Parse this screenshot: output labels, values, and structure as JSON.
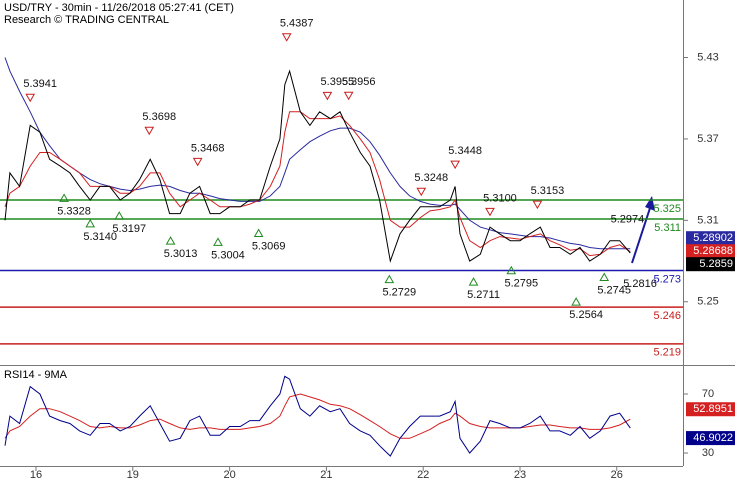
{
  "chart_data": [
    {
      "type": "line",
      "title": "USD/TRY - 30min - 11/26/2018 05:27:41 (CET)",
      "subtitle": "Research © TRADING CENTRAL",
      "x": [
        -0.32,
        -0.27,
        -0.17,
        -0.06,
        0.04,
        0.14,
        0.25,
        0.35,
        0.45,
        0.56,
        0.66,
        0.76,
        0.87,
        0.97,
        1.07,
        1.18,
        1.28,
        1.38,
        1.49,
        1.59,
        1.69,
        1.8,
        1.9,
        2.0,
        2.11,
        2.21,
        2.31,
        2.42,
        2.52,
        2.57,
        2.62,
        2.73,
        2.83,
        2.93,
        3.04,
        3.14,
        3.24,
        3.35,
        3.45,
        3.55,
        3.66,
        3.76,
        3.86,
        3.97,
        4.07,
        4.17,
        4.28,
        4.33,
        4.38,
        4.48,
        4.59,
        4.69,
        4.79,
        4.9,
        5.0,
        5.1,
        5.21,
        5.31,
        5.41,
        5.52,
        5.62,
        5.72,
        5.83,
        5.93,
        6.03,
        6.14
      ],
      "series": [
        {
          "color": "#2a2aa0",
          "values": [
            5.43,
            5.42,
            5.405,
            5.39,
            5.375,
            5.365,
            5.355,
            5.35,
            5.345,
            5.34,
            5.337,
            5.335,
            5.333,
            5.332,
            5.333,
            5.335,
            5.336,
            5.335,
            5.332,
            5.33,
            5.33,
            5.328,
            5.326,
            5.325,
            5.324,
            5.324,
            5.324,
            5.328,
            5.335,
            5.345,
            5.355,
            5.362,
            5.368,
            5.372,
            5.376,
            5.378,
            5.378,
            5.375,
            5.368,
            5.358,
            5.345,
            5.335,
            5.328,
            5.324,
            5.322,
            5.321,
            5.321,
            5.322,
            5.318,
            5.31,
            5.305,
            5.303,
            5.301,
            5.3,
            5.299,
            5.298,
            5.298,
            5.297,
            5.295,
            5.293,
            5.292,
            5.29,
            5.289,
            5.289,
            5.289,
            5.28902
          ]
        },
        {
          "color": "#d42020",
          "values": [
            5.32,
            5.33,
            5.335,
            5.35,
            5.36,
            5.36,
            5.355,
            5.35,
            5.345,
            5.335,
            5.335,
            5.335,
            5.33,
            5.33,
            5.335,
            5.345,
            5.345,
            5.33,
            5.32,
            5.325,
            5.33,
            5.325,
            5.32,
            5.32,
            5.32,
            5.322,
            5.325,
            5.335,
            5.35,
            5.375,
            5.39,
            5.39,
            5.385,
            5.385,
            5.385,
            5.387,
            5.38,
            5.37,
            5.36,
            5.34,
            5.31,
            5.305,
            5.305,
            5.312,
            5.317,
            5.318,
            5.32,
            5.325,
            5.312,
            5.295,
            5.29,
            5.295,
            5.298,
            5.297,
            5.296,
            5.298,
            5.3,
            5.295,
            5.292,
            5.288,
            5.289,
            5.284,
            5.285,
            5.29,
            5.292,
            5.28688
          ]
        },
        {
          "color": "#000000",
          "values": [
            5.31,
            5.345,
            5.335,
            5.38,
            5.375,
            5.355,
            5.35,
            5.345,
            5.335,
            5.325,
            5.335,
            5.335,
            5.325,
            5.33,
            5.34,
            5.355,
            5.34,
            5.315,
            5.315,
            5.33,
            5.335,
            5.315,
            5.315,
            5.32,
            5.32,
            5.325,
            5.325,
            5.35,
            5.37,
            5.41,
            5.42,
            5.39,
            5.38,
            5.39,
            5.385,
            5.39,
            5.375,
            5.36,
            5.35,
            5.325,
            5.28,
            5.3,
            5.31,
            5.32,
            5.32,
            5.32,
            5.325,
            5.335,
            5.3,
            5.28,
            5.285,
            5.305,
            5.3,
            5.295,
            5.295,
            5.3,
            5.305,
            5.29,
            5.29,
            5.285,
            5.29,
            5.28,
            5.285,
            5.295,
            5.295,
            5.2859
          ]
        }
      ],
      "xlim": [
        -0.372,
        6.684
      ],
      "ylim": [
        5.2056,
        5.4724
      ],
      "yticks": [
        5.43,
        5.37,
        5.31,
        5.25
      ],
      "levels": [
        {
          "value": 5.325,
          "color": "#1f8a1f"
        },
        {
          "value": 5.311,
          "color": "#1f8a1f"
        },
        {
          "value": 5.273,
          "color": "#1a1ab0"
        },
        {
          "value": 5.246,
          "color": "#c81e1e"
        },
        {
          "value": 5.219,
          "color": "#c81e1e"
        }
      ],
      "annotations": [
        {
          "x": -0.06,
          "value": 5.3941,
          "kind": "high"
        },
        {
          "x": 1.17,
          "value": 5.3698,
          "kind": "high"
        },
        {
          "x": 1.67,
          "value": 5.3468,
          "kind": "high"
        },
        {
          "x": 2.59,
          "value": 5.4387,
          "kind": "high"
        },
        {
          "x": 3.01,
          "value": 5.3955,
          "kind": "high"
        },
        {
          "x": 3.23,
          "value": 5.3956,
          "kind": "high"
        },
        {
          "x": 3.98,
          "value": 5.3248,
          "kind": "high"
        },
        {
          "x": 4.33,
          "value": 5.3448,
          "kind": "high"
        },
        {
          "x": 4.69,
          "value": 5.31,
          "label": "5.3100",
          "kind": "high"
        },
        {
          "x": 5.18,
          "value": 5.3153,
          "kind": "high"
        },
        {
          "x": 0.29,
          "value": 5.3328,
          "kind": "low"
        },
        {
          "x": 0.56,
          "value": 5.314,
          "label": "5.3140",
          "kind": "low"
        },
        {
          "x": 0.86,
          "value": 5.3197,
          "kind": "low"
        },
        {
          "x": 1.39,
          "value": 5.3013,
          "kind": "low"
        },
        {
          "x": 1.88,
          "value": 5.3004,
          "kind": "low"
        },
        {
          "x": 2.3,
          "value": 5.3069,
          "kind": "low"
        },
        {
          "x": 3.65,
          "value": 5.2729,
          "kind": "low"
        },
        {
          "x": 4.52,
          "value": 5.2711,
          "kind": "low"
        },
        {
          "x": 4.91,
          "value": 5.2795,
          "kind": "low"
        },
        {
          "x": 5.58,
          "value": 5.2564,
          "kind": "low"
        },
        {
          "x": 5.87,
          "value": 5.2745,
          "kind": "low"
        },
        {
          "x": 6.11,
          "value": 5.2974,
          "kind": "label-above"
        },
        {
          "x": 6.24,
          "value": 5.2816,
          "kind": "label-below"
        }
      ]
    },
    {
      "type": "line",
      "title": "RSI14 - 9MA",
      "x": [
        -0.32,
        -0.27,
        -0.17,
        -0.06,
        0.04,
        0.14,
        0.25,
        0.35,
        0.45,
        0.56,
        0.66,
        0.76,
        0.87,
        0.97,
        1.07,
        1.18,
        1.28,
        1.38,
        1.49,
        1.59,
        1.69,
        1.8,
        1.9,
        2.0,
        2.11,
        2.21,
        2.31,
        2.42,
        2.52,
        2.57,
        2.62,
        2.73,
        2.83,
        2.93,
        3.04,
        3.14,
        3.24,
        3.35,
        3.45,
        3.55,
        3.66,
        3.76,
        3.86,
        3.97,
        4.07,
        4.17,
        4.28,
        4.33,
        4.38,
        4.48,
        4.59,
        4.69,
        4.79,
        4.9,
        5.0,
        5.1,
        5.21,
        5.31,
        5.41,
        5.52,
        5.62,
        5.72,
        5.83,
        5.93,
        6.03,
        6.14
      ],
      "series": [
        {
          "color": "#d42020",
          "values": [
            40,
            45,
            48,
            55,
            60,
            60,
            58,
            55,
            52,
            48,
            47,
            48,
            47,
            47,
            49,
            52,
            53,
            50,
            47,
            46,
            47,
            47,
            46,
            46,
            46,
            47,
            48,
            50,
            55,
            62,
            68,
            70,
            68,
            66,
            63,
            62,
            60,
            56,
            52,
            48,
            43,
            40,
            40,
            43,
            46,
            50,
            53,
            57,
            55,
            50,
            48,
            47,
            47,
            47,
            47,
            48,
            49,
            49,
            48,
            47,
            47,
            46,
            46,
            47,
            49,
            52.8951
          ]
        },
        {
          "color": "#00008b",
          "values": [
            35,
            55,
            50,
            75,
            70,
            55,
            52,
            50,
            45,
            42,
            50,
            50,
            45,
            48,
            55,
            62,
            50,
            38,
            40,
            52,
            55,
            42,
            42,
            48,
            48,
            52,
            52,
            62,
            70,
            82,
            80,
            60,
            55,
            62,
            58,
            60,
            50,
            45,
            42,
            35,
            28,
            40,
            48,
            55,
            55,
            55,
            58,
            65,
            40,
            30,
            38,
            52,
            50,
            47,
            47,
            50,
            55,
            45,
            45,
            42,
            48,
            40,
            45,
            55,
            57,
            46.9022
          ]
        }
      ],
      "xlim": [
        -0.372,
        6.684
      ],
      "xticks": [
        {
          "value": 0,
          "label": "16"
        },
        {
          "value": 1,
          "label": "19"
        },
        {
          "value": 2,
          "label": "20"
        },
        {
          "value": 3,
          "label": "21"
        },
        {
          "value": 4,
          "label": "22"
        },
        {
          "value": 5,
          "label": "23"
        },
        {
          "value": 6,
          "label": "26"
        }
      ],
      "ylim": [
        21.9,
        87.6
      ],
      "yticks": [
        70,
        30
      ]
    }
  ]
}
